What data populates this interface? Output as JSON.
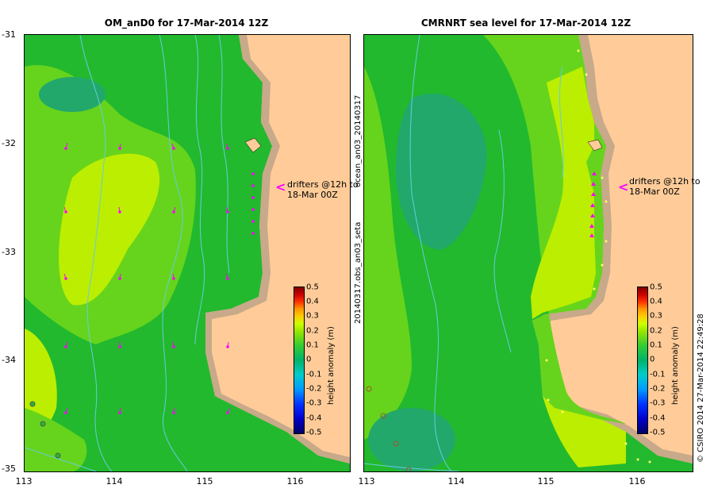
{
  "left_panel": {
    "title": "OM_anD0 for 17-Mar-2014 12Z",
    "drifter_note_1": "drifters @12h to",
    "drifter_note_2": "18-Mar 00Z"
  },
  "right_panel": {
    "title": "CMRNRT sea level  for 17-Mar-2014 12Z",
    "drifter_note_1": "drifters @12h to",
    "drifter_note_2": "18-Mar 00Z",
    "side_label_top": "ocean_an03_20140317",
    "side_label_bottom": "20140317.obs_an03_seta"
  },
  "y_ticks": [
    "-31",
    "-32",
    "-33",
    "-34",
    "-35"
  ],
  "x_ticks": [
    "113",
    "114",
    "115",
    "116"
  ],
  "colorbar": {
    "labels": [
      "0.5",
      "0.4",
      "0.3",
      "0.2",
      "0.1",
      "0",
      "-0.1",
      "-0.2",
      "-0.3",
      "-0.4",
      "-0.5"
    ],
    "unit": "height anomaly (m)"
  },
  "credit": "© CSIRO 2014   27-Mar-2014 22:49:28",
  "colors": {
    "land": "#ffcc99",
    "shelf": "#c8a98a",
    "green": "#22b92e",
    "light_green": "#66d41c",
    "yellow_green": "#bbee00",
    "teal": "#22a86a",
    "contour": "#66ccdd",
    "drifter": "#ff00ff"
  }
}
